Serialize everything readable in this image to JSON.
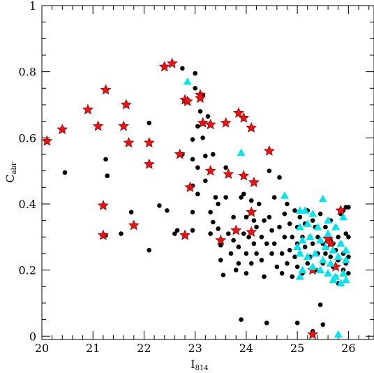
{
  "chart_data": {
    "type": "scatter",
    "title": "",
    "xlabel": "I",
    "xlabel_sub": "814",
    "ylabel": "C",
    "ylabel_sub": "abr",
    "xlim": [
      20,
      26.5
    ],
    "ylim": [
      -0.01,
      1
    ],
    "x_ticks": [
      20,
      21,
      22,
      23,
      24,
      25,
      26
    ],
    "x_tick_labels": [
      "20",
      "21",
      "22",
      "23",
      "24",
      "25",
      "26"
    ],
    "y_ticks": [
      0,
      0.2,
      0.4,
      0.6,
      0.8,
      1
    ],
    "y_tick_labels": [
      "0",
      "0.2",
      "0.4",
      "0.6",
      "0.8",
      "1"
    ],
    "grid": false,
    "legend": "none",
    "colors": {
      "black": "#000000",
      "red": "#ee1111",
      "cyan": "#00e5f0"
    },
    "series": [
      {
        "marker": "circle",
        "color": "#000000",
        "points": [
          [
            20.45,
            0.495
          ],
          [
            21.25,
            0.535
          ],
          [
            21.28,
            0.485
          ],
          [
            21.75,
            0.375
          ],
          [
            21.55,
            0.31
          ],
          [
            21.25,
            0.305
          ],
          [
            22.1,
            0.645
          ],
          [
            22.1,
            0.26
          ],
          [
            22.3,
            0.395
          ],
          [
            22.45,
            0.38
          ],
          [
            22.6,
            0.31
          ],
          [
            22.65,
            0.32
          ],
          [
            22.75,
            0.55
          ],
          [
            22.75,
            0.81
          ],
          [
            22.8,
            0.71
          ],
          [
            22.95,
            0.595
          ],
          [
            22.95,
            0.535
          ],
          [
            22.95,
            0.455
          ],
          [
            22.95,
            0.375
          ],
          [
            22.95,
            0.32
          ],
          [
            23.0,
            0.795
          ],
          [
            23.0,
            0.75
          ],
          [
            23.05,
            0.635
          ],
          [
            23.05,
            0.51
          ],
          [
            23.05,
            0.43
          ],
          [
            23.1,
            0.68
          ],
          [
            23.15,
            0.73
          ],
          [
            23.15,
            0.6
          ],
          [
            23.2,
            0.545
          ],
          [
            23.2,
            0.47
          ],
          [
            23.25,
            0.665
          ],
          [
            23.3,
            0.375
          ],
          [
            23.3,
            0.31
          ],
          [
            23.35,
            0.55
          ],
          [
            23.35,
            0.345
          ],
          [
            23.4,
            0.42
          ],
          [
            23.45,
            0.4
          ],
          [
            23.45,
            0.325
          ],
          [
            23.5,
            0.275
          ],
          [
            23.5,
            0.23
          ],
          [
            23.55,
            0.185
          ],
          [
            23.6,
            0.51
          ],
          [
            23.6,
            0.42
          ],
          [
            23.65,
            0.31
          ],
          [
            23.7,
            0.25
          ],
          [
            23.75,
            0.36
          ],
          [
            23.75,
            0.29
          ],
          [
            23.8,
            0.2
          ],
          [
            23.85,
            0.27
          ],
          [
            23.85,
            0.22
          ],
          [
            23.9,
            0.42
          ],
          [
            23.9,
            0.05
          ],
          [
            23.95,
            0.43
          ],
          [
            23.95,
            0.31
          ],
          [
            24.0,
            0.36
          ],
          [
            24.0,
            0.25
          ],
          [
            24.0,
            0.19
          ],
          [
            24.05,
            0.3
          ],
          [
            24.1,
            0.41
          ],
          [
            24.1,
            0.22
          ],
          [
            24.15,
            0.35
          ],
          [
            24.15,
            0.28
          ],
          [
            24.2,
            0.33
          ],
          [
            24.2,
            0.25
          ],
          [
            24.25,
            0.4
          ],
          [
            24.3,
            0.3
          ],
          [
            24.3,
            0.23
          ],
          [
            24.35,
            0.35
          ],
          [
            24.35,
            0.18
          ],
          [
            24.4,
            0.28
          ],
          [
            24.4,
            0.04
          ],
          [
            24.45,
            0.5
          ],
          [
            24.45,
            0.36
          ],
          [
            24.5,
            0.32
          ],
          [
            24.5,
            0.25
          ],
          [
            24.55,
            0.42
          ],
          [
            24.55,
            0.28
          ],
          [
            24.6,
            0.21
          ],
          [
            24.65,
            0.48
          ],
          [
            24.65,
            0.33
          ],
          [
            24.7,
            0.25
          ],
          [
            24.7,
            0.19
          ],
          [
            24.75,
            0.37
          ],
          [
            24.75,
            0.3
          ],
          [
            24.8,
            0.22
          ],
          [
            24.8,
            0.4
          ],
          [
            24.85,
            0.34
          ],
          [
            24.85,
            0.26
          ],
          [
            24.9,
            0.3
          ],
          [
            24.9,
            0.18
          ],
          [
            24.95,
            0.38
          ],
          [
            24.95,
            0.24
          ],
          [
            25.0,
            0.33
          ],
          [
            25.0,
            0.28
          ],
          [
            25.0,
            0.21
          ],
          [
            25.0,
            0.04
          ],
          [
            25.05,
            0.36
          ],
          [
            25.05,
            0.25
          ],
          [
            25.1,
            0.3
          ],
          [
            25.1,
            0.19
          ],
          [
            25.15,
            0.34
          ],
          [
            25.15,
            0.27
          ],
          [
            25.2,
            0.38
          ],
          [
            25.2,
            0.22
          ],
          [
            25.25,
            0.3
          ],
          [
            25.25,
            0.24
          ],
          [
            25.3,
            0.35
          ],
          [
            25.3,
            0.28
          ],
          [
            25.3,
            0.015
          ],
          [
            25.35,
            0.33
          ],
          [
            25.35,
            0.2
          ],
          [
            25.4,
            0.3
          ],
          [
            25.4,
            0.25
          ],
          [
            25.45,
            0.37
          ],
          [
            25.45,
            0.095
          ],
          [
            25.5,
            0.28
          ],
          [
            25.5,
            0.22
          ],
          [
            25.5,
            0.035
          ],
          [
            25.55,
            0.33
          ],
          [
            25.55,
            0.25
          ],
          [
            25.6,
            0.3
          ],
          [
            25.6,
            0.19
          ],
          [
            25.65,
            0.35
          ],
          [
            25.65,
            0.24
          ],
          [
            25.7,
            0.28
          ],
          [
            25.7,
            0.21
          ],
          [
            25.75,
            0.33
          ],
          [
            25.75,
            0.26
          ],
          [
            25.75,
            0.18
          ],
          [
            25.8,
            0.3
          ],
          [
            25.8,
            0.23
          ],
          [
            25.85,
            0.37
          ],
          [
            25.85,
            0.28
          ],
          [
            25.9,
            0.25
          ],
          [
            25.9,
            0.2
          ],
          [
            25.95,
            0.39
          ],
          [
            25.95,
            0.31
          ],
          [
            25.95,
            0.22
          ],
          [
            26.0,
            0.39
          ],
          [
            26.0,
            0.3
          ],
          [
            26.0,
            0.24
          ],
          [
            26.0,
            0.19
          ],
          [
            25.9,
            0.38
          ],
          [
            25.8,
            0.16
          ],
          [
            25.65,
            0.29
          ]
        ]
      },
      {
        "marker": "star",
        "color": "#ee1111",
        "points": [
          [
            20.1,
            0.59
          ],
          [
            20.4,
            0.625
          ],
          [
            20.9,
            0.685
          ],
          [
            21.1,
            0.635
          ],
          [
            21.25,
            0.745
          ],
          [
            21.6,
            0.635
          ],
          [
            21.65,
            0.7
          ],
          [
            21.7,
            0.585
          ],
          [
            22.1,
            0.52
          ],
          [
            22.1,
            0.585
          ],
          [
            21.2,
            0.395
          ],
          [
            21.8,
            0.335
          ],
          [
            21.2,
            0.305
          ],
          [
            22.4,
            0.815
          ],
          [
            22.55,
            0.825
          ],
          [
            22.8,
            0.715
          ],
          [
            22.85,
            0.71
          ],
          [
            22.7,
            0.55
          ],
          [
            22.8,
            0.305
          ],
          [
            22.9,
            0.45
          ],
          [
            23.1,
            0.73
          ],
          [
            23.1,
            0.72
          ],
          [
            23.15,
            0.645
          ],
          [
            23.3,
            0.64
          ],
          [
            23.6,
            0.645
          ],
          [
            23.85,
            0.675
          ],
          [
            23.95,
            0.66
          ],
          [
            24.1,
            0.63
          ],
          [
            23.3,
            0.5
          ],
          [
            23.65,
            0.49
          ],
          [
            23.95,
            0.485
          ],
          [
            24.15,
            0.465
          ],
          [
            24.45,
            0.56
          ],
          [
            23.5,
            0.29
          ],
          [
            24.1,
            0.375
          ],
          [
            24.1,
            0.315
          ],
          [
            23.8,
            0.32
          ],
          [
            25.3,
            0.2
          ],
          [
            25.6,
            0.295
          ],
          [
            25.65,
            0.28
          ],
          [
            25.85,
            0.38
          ],
          [
            25.75,
            0.21
          ],
          [
            25.3,
            0.005
          ]
        ]
      },
      {
        "marker": "triangle",
        "color": "#00e5f0",
        "points": [
          [
            22.85,
            0.77
          ],
          [
            23.9,
            0.555
          ],
          [
            24.75,
            0.425
          ],
          [
            25.05,
            0.38
          ],
          [
            25.15,
            0.38
          ],
          [
            25.5,
            0.415
          ],
          [
            25.3,
            0.37
          ],
          [
            25.05,
            0.33
          ],
          [
            25.2,
            0.34
          ],
          [
            25.4,
            0.33
          ],
          [
            25.6,
            0.31
          ],
          [
            25.75,
            0.33
          ],
          [
            25.9,
            0.36
          ],
          [
            25.1,
            0.29
          ],
          [
            25.25,
            0.3
          ],
          [
            25.45,
            0.29
          ],
          [
            25.55,
            0.27
          ],
          [
            25.7,
            0.26
          ],
          [
            25.85,
            0.28
          ],
          [
            25.95,
            0.26
          ],
          [
            25.05,
            0.25
          ],
          [
            25.2,
            0.24
          ],
          [
            25.35,
            0.25
          ],
          [
            25.5,
            0.23
          ],
          [
            25.65,
            0.22
          ],
          [
            25.8,
            0.24
          ],
          [
            25.95,
            0.23
          ],
          [
            25.1,
            0.2
          ],
          [
            25.3,
            0.21
          ],
          [
            25.45,
            0.2
          ],
          [
            25.6,
            0.19
          ],
          [
            25.75,
            0.18
          ],
          [
            25.9,
            0.19
          ],
          [
            25.05,
            0.18
          ],
          [
            25.85,
            0.16
          ],
          [
            25.7,
            0.17
          ],
          [
            25.95,
            0.17
          ],
          [
            25.8,
            0.005
          ],
          [
            25.0,
            0.27
          ],
          [
            25.6,
            0.35
          ]
        ]
      }
    ]
  }
}
